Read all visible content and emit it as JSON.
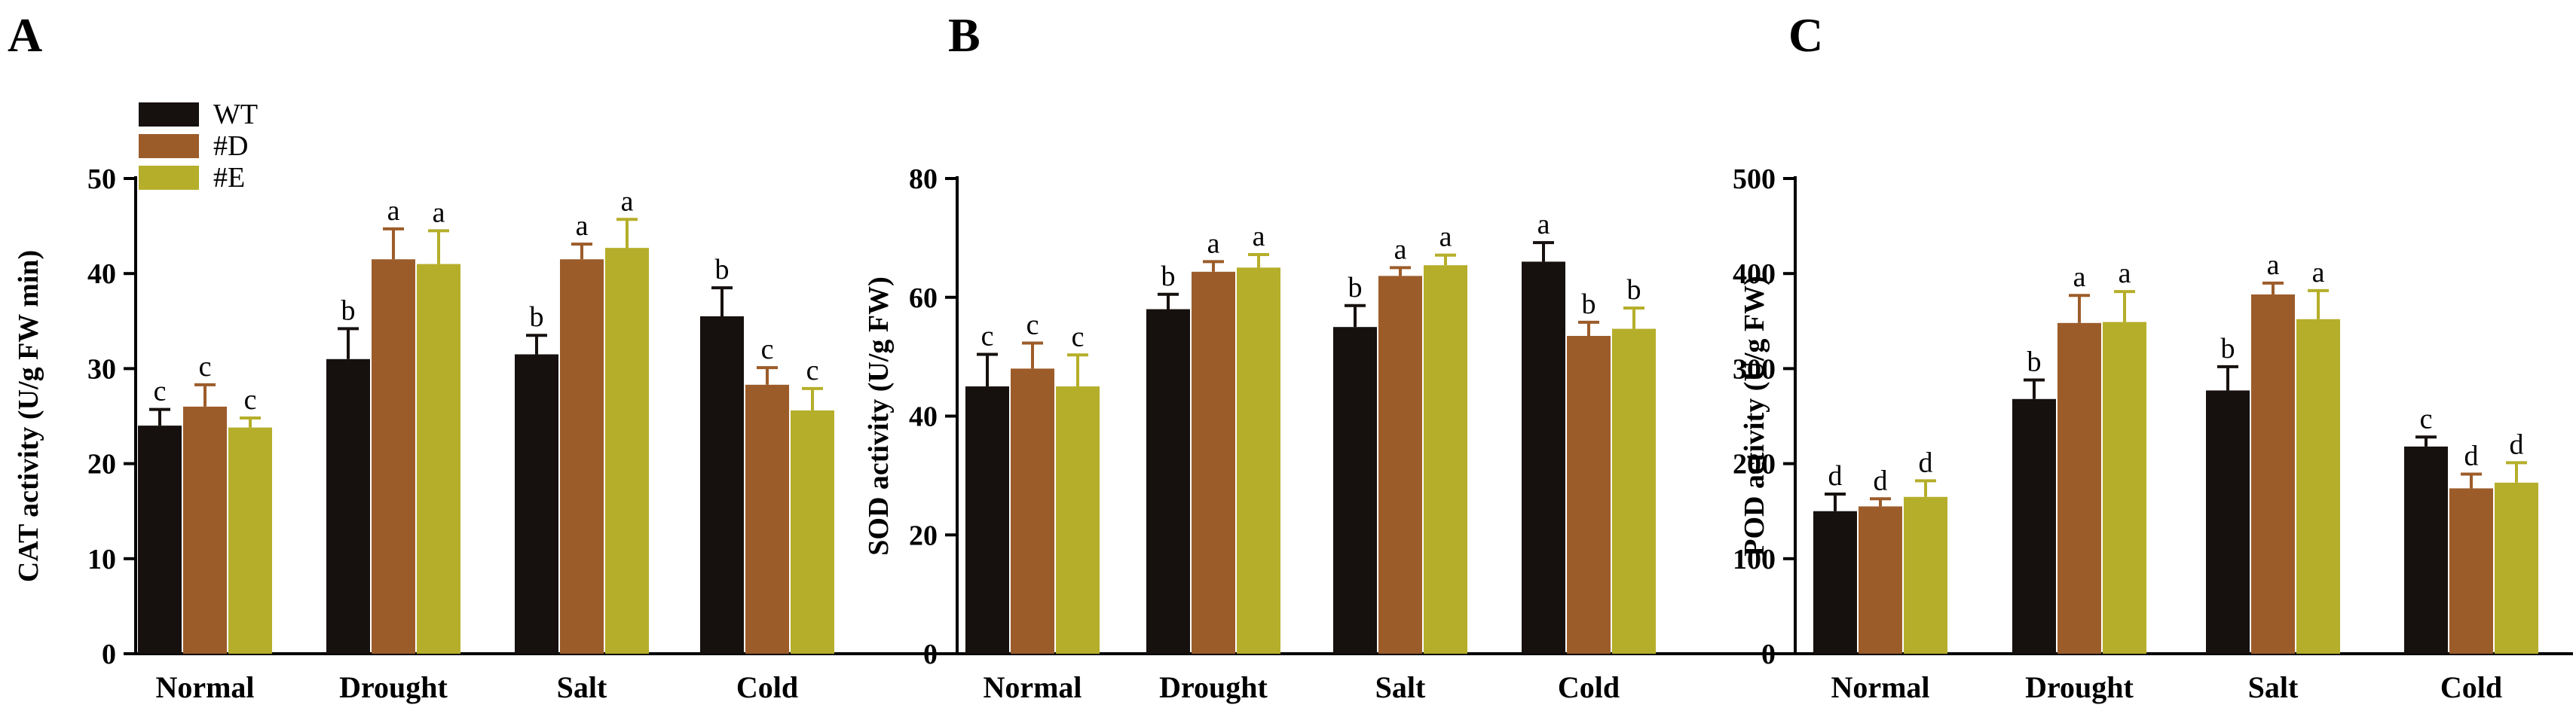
{
  "legend": {
    "series": [
      {
        "name": "WT",
        "color": "#16110f"
      },
      {
        "name": "#D",
        "color": "#9c5c2a"
      },
      {
        "name": "#E",
        "color": "#b5ae2a"
      }
    ]
  },
  "chart_data": [
    {
      "type": "bar",
      "panel": "A",
      "ylabel": "CAT activity (U/g FW min)",
      "ylim": [
        0,
        50
      ],
      "yticks": [
        0,
        10,
        20,
        30,
        40,
        50
      ],
      "categories": [
        "Normal",
        "Drought",
        "Salt",
        "Cold"
      ],
      "series": [
        {
          "name": "WT",
          "values": [
            24,
            31,
            31.5,
            35.5
          ],
          "errors": [
            1.7,
            3.2,
            2.0,
            3.0
          ],
          "labels": [
            "c",
            "b",
            "b",
            "b"
          ]
        },
        {
          "name": "#D",
          "values": [
            26,
            41.5,
            41.5,
            28.3
          ],
          "errors": [
            2.3,
            3.2,
            1.6,
            1.8
          ],
          "labels": [
            "c",
            "a",
            "a",
            "c"
          ]
        },
        {
          "name": "#E",
          "values": [
            23.8,
            41,
            42.7,
            25.6
          ],
          "errors": [
            1.0,
            3.5,
            3.0,
            2.3
          ],
          "labels": [
            "c",
            "a",
            "a",
            "c"
          ]
        }
      ]
    },
    {
      "type": "bar",
      "panel": "B",
      "ylabel": "SOD activity (U/g FW)",
      "ylim": [
        0,
        80
      ],
      "yticks": [
        0,
        20,
        40,
        60,
        80
      ],
      "categories": [
        "Normal",
        "Drought",
        "Salt",
        "Cold"
      ],
      "series": [
        {
          "name": "WT",
          "values": [
            45,
            58,
            55,
            66
          ],
          "errors": [
            5.4,
            2.5,
            3.6,
            3.2
          ],
          "labels": [
            "c",
            "b",
            "b",
            "a"
          ]
        },
        {
          "name": "#D",
          "values": [
            48,
            64.3,
            63.6,
            53.5
          ],
          "errors": [
            4.3,
            1.7,
            1.4,
            2.3
          ],
          "labels": [
            "c",
            "a",
            "a",
            "b"
          ]
        },
        {
          "name": "#E",
          "values": [
            45,
            65,
            65.4,
            54.7
          ],
          "errors": [
            5.3,
            2.2,
            1.7,
            3.5
          ],
          "labels": [
            "c",
            "a",
            "a",
            "b"
          ]
        }
      ]
    },
    {
      "type": "bar",
      "panel": "C",
      "ylabel": "POD activity (U/g FW)",
      "ylim": [
        0,
        500
      ],
      "yticks": [
        0,
        100,
        200,
        300,
        400,
        500
      ],
      "categories": [
        "Normal",
        "Drought",
        "Salt",
        "Cold"
      ],
      "series": [
        {
          "name": "WT",
          "values": [
            150,
            268,
            277,
            218
          ],
          "errors": [
            18,
            20,
            25,
            10
          ],
          "labels": [
            "d",
            "b",
            "b",
            "c"
          ]
        },
        {
          "name": "#D",
          "values": [
            155,
            348,
            378,
            174
          ],
          "errors": [
            8,
            29,
            12,
            15
          ],
          "labels": [
            "d",
            "a",
            "a",
            "d"
          ]
        },
        {
          "name": "#E",
          "values": [
            165,
            349,
            352,
            180
          ],
          "errors": [
            17,
            32,
            30,
            21
          ],
          "labels": [
            "d",
            "a",
            "a",
            "d"
          ]
        }
      ]
    }
  ]
}
